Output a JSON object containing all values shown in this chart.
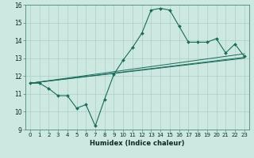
{
  "xlabel": "Humidex (Indice chaleur)",
  "bg_color": "#cce8e0",
  "grid_color": "#aacfc8",
  "line_color": "#1a6b5a",
  "x_data": [
    0,
    1,
    2,
    3,
    4,
    5,
    6,
    7,
    8,
    9,
    10,
    11,
    12,
    13,
    14,
    15,
    16,
    17,
    18,
    19,
    20,
    21,
    22,
    23
  ],
  "y_main": [
    11.6,
    11.6,
    11.3,
    10.9,
    10.9,
    10.2,
    10.4,
    9.2,
    10.7,
    12.1,
    12.9,
    13.6,
    14.4,
    15.7,
    15.8,
    15.7,
    14.8,
    13.9,
    13.9,
    13.9,
    14.1,
    13.3,
    13.8,
    13.1
  ],
  "line1_start": 11.6,
  "line1_end": 13.05,
  "line2_start": 11.6,
  "line2_end": 13.25,
  "line3_start": 11.6,
  "line3_end": 13.0,
  "ylim": [
    9,
    16
  ],
  "xlim_min": -0.5,
  "xlim_max": 23.5,
  "yticks": [
    9,
    10,
    11,
    12,
    13,
    14,
    15,
    16
  ],
  "xticks": [
    0,
    1,
    2,
    3,
    4,
    5,
    6,
    7,
    8,
    9,
    10,
    11,
    12,
    13,
    14,
    15,
    16,
    17,
    18,
    19,
    20,
    21,
    22,
    23
  ],
  "xlabel_fontsize": 6.0,
  "tick_fontsize": 5.0
}
